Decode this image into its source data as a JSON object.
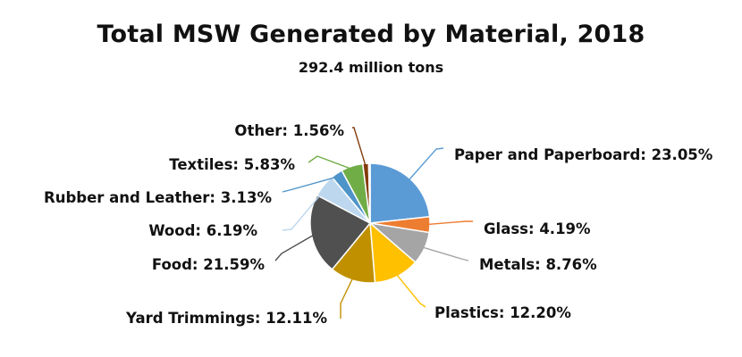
{
  "chart_data": {
    "type": "pie",
    "title": "Total MSW Generated by Material, 2018",
    "subtitle": "292.4 million tons",
    "slices": [
      {
        "name": "Paper and Paperboard",
        "value": 23.05,
        "label": "Paper and Paperboard: 23.05%",
        "color": "#5b9bd5"
      },
      {
        "name": "Glass",
        "value": 4.19,
        "label": "Glass: 4.19%",
        "color": "#ed7d31"
      },
      {
        "name": "Metals",
        "value": 8.76,
        "label": "Metals: 8.76%",
        "color": "#a5a5a5"
      },
      {
        "name": "Plastics",
        "value": 12.2,
        "label": "Plastics: 12.20%",
        "color": "#ffc000"
      },
      {
        "name": "Yard Trimmings",
        "value": 12.11,
        "label": "Yard Trimmings: 12.11%",
        "color": "#c09000"
      },
      {
        "name": "Food",
        "value": 21.59,
        "label": "Food: 21.59%",
        "color": "#505050"
      },
      {
        "name": "Wood",
        "value": 6.19,
        "label": "Wood: 6.19%",
        "color": "#bdd7ee"
      },
      {
        "name": "Rubber and Leather",
        "value": 3.13,
        "label": "Rubber and Leather: 3.13%",
        "color": "#4f94c8"
      },
      {
        "name": "Textiles",
        "value": 5.83,
        "label": "Textiles: 5.83%",
        "color": "#70ad47"
      },
      {
        "name": "Other",
        "value": 1.56,
        "label": "Other: 1.56%",
        "color": "#843c0c"
      },
      {
        "name": "",
        "value": 0.38,
        "label": "",
        "color": "#264478"
      }
    ]
  }
}
